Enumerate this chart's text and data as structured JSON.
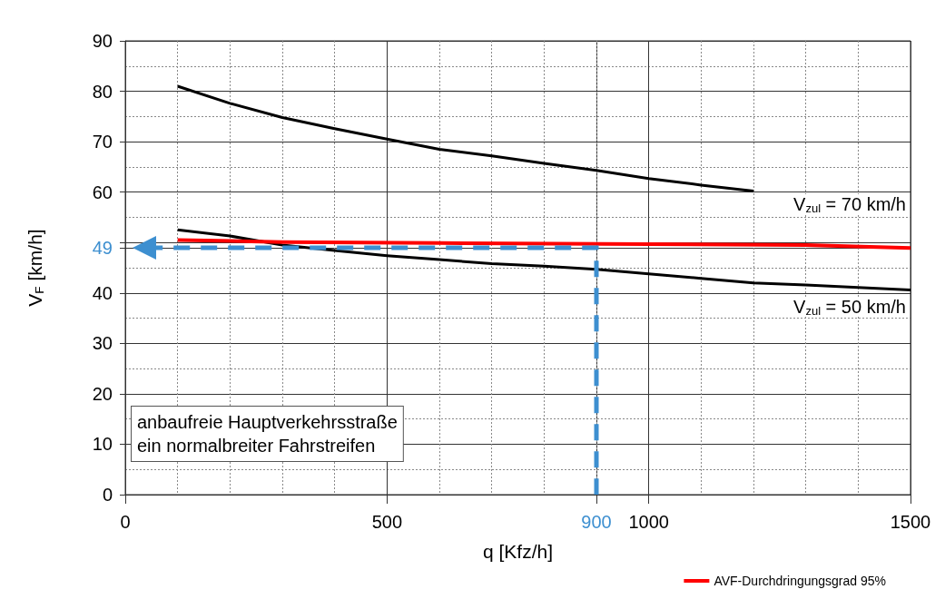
{
  "chart_data": {
    "type": "line",
    "xlabel": "q [Kfz/h]",
    "ylabel": "V$_{F}$ [km/h]",
    "xlim": [
      0,
      1500
    ],
    "xticks": [
      0,
      500,
      900,
      1000,
      1500
    ],
    "ylim": [
      0,
      90
    ],
    "yticks": [
      0,
      10,
      20,
      30,
      40,
      49,
      {
        "value": 50,
        "label": null
      },
      60,
      70,
      80,
      90
    ],
    "grid": true,
    "legend": "bottom right",
    "line_style": "solid",
    "series": [
      {
        "color": "#000000",
        "x": [
          100,
          200,
          300,
          400,
          500,
          600,
          700,
          800,
          900,
          1000,
          1100,
          1200
        ],
        "values": [
          81,
          77.6,
          74.8,
          72.6,
          70.5,
          68.5,
          67.2,
          65.7,
          64.3,
          62.7,
          61.4,
          60.2
        ]
      },
      {
        "color": "#000000",
        "x": [
          100,
          200,
          300,
          400,
          500,
          600,
          700,
          800,
          900,
          1000,
          1100,
          1200,
          1300,
          1400,
          1500
        ],
        "values": [
          52.5,
          51.3,
          49.5,
          48.4,
          47.4,
          46.6,
          45.8,
          45.3,
          44.7,
          43.8,
          42.9,
          42.0,
          41.6,
          41.1,
          40.6
        ]
      },
      {
        "name": "AVF-Durchdringungsgrad 95%",
        "color": "#ff0000",
        "x": [
          100,
          300,
          600,
          1000,
          1300,
          1500
        ],
        "values": [
          50.5,
          50.1,
          49.9,
          49.7,
          49.5,
          48.9
        ]
      }
    ],
    "annotations": [
      "V$_{zul}$ = 70 km/h",
      "V$_{zul}$ = 50 km/h",
      "anbaufreie Hauptverkehrsstraße\nein normalbreiter Fahrstreifen"
    ]
  }
}
